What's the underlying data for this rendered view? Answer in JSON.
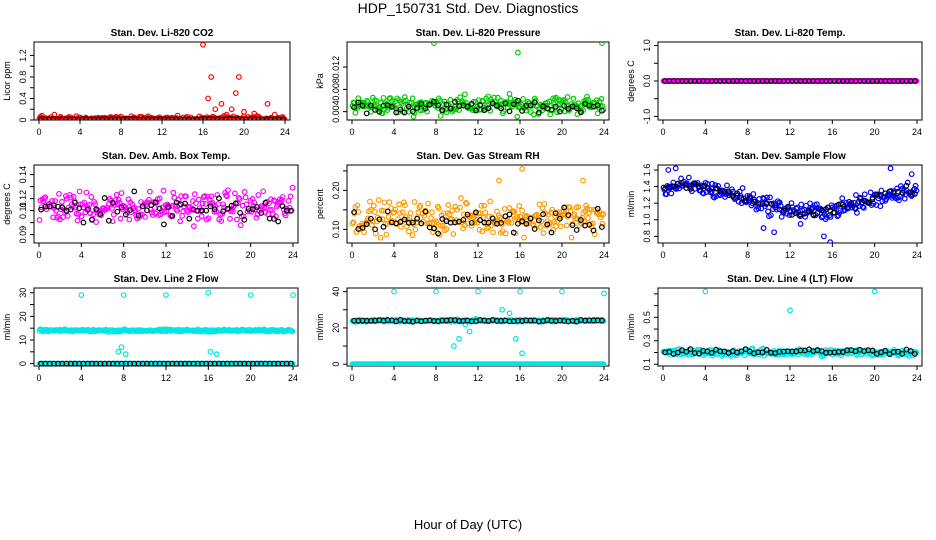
{
  "page": {
    "title": "HDP_150731  Std. Dev. Diagnostics",
    "xlabel": "Hour of Day (UTC)"
  },
  "chart_data": [
    {
      "type": "scatter",
      "title": "Stan. Dev. Li-820 CO2",
      "ylabel": "Licor ppm",
      "xlim": [
        0,
        24
      ],
      "ylim": [
        0,
        1.45
      ],
      "xticks": [
        "0",
        "4",
        "8",
        "12",
        "16",
        "20",
        "24"
      ],
      "yticks": [
        0,
        0.2,
        0.4,
        0.6,
        0.8,
        1.0,
        1.2
      ],
      "ytick_labels": [
        "0",
        "",
        "0.4",
        "",
        "0.8",
        "",
        "1.2"
      ],
      "grid": false,
      "series": [
        {
          "color": "#ff0000",
          "base": 0.02,
          "spread": 0.04,
          "outliers": [
            [
              0.3,
              0.08
            ],
            [
              1.5,
              0.1
            ],
            [
              2.1,
              0.06
            ],
            [
              16.0,
              1.4
            ],
            [
              16.5,
              0.4
            ],
            [
              16.8,
              0.8
            ],
            [
              17.2,
              0.2
            ],
            [
              17.8,
              0.3
            ],
            [
              18.3,
              0.1
            ],
            [
              18.8,
              0.2
            ],
            [
              19.2,
              0.5
            ],
            [
              19.5,
              0.8
            ],
            [
              20.0,
              0.15
            ],
            [
              21.0,
              0.12
            ],
            [
              22.3,
              0.3
            ],
            [
              23.0,
              0.1
            ]
          ]
        },
        {
          "color": "#000000",
          "base": 0.01,
          "spread": 0.01,
          "outliers": []
        }
      ]
    },
    {
      "type": "scatter",
      "title": "Stan. Dev. Li-820 Pressure",
      "ylabel": "kPa",
      "xlim": [
        0,
        24
      ],
      "ylim": [
        0.0025,
        0.0165
      ],
      "xticks": [
        "0",
        "4",
        "8",
        "12",
        "16",
        "20",
        "24"
      ],
      "yticks": [
        0.004,
        0.008,
        0.012
      ],
      "ytick_labels": [
        "0.004",
        "0.008",
        "0.012"
      ],
      "grid": false,
      "series": [
        {
          "color": "#00cc00",
          "base": 0.0052,
          "spread": 0.0014,
          "outliers": [
            [
              7.8,
              0.0163
            ],
            [
              15.8,
              0.0146
            ],
            [
              23.8,
              0.0163
            ]
          ]
        },
        {
          "color": "#000000",
          "base": 0.0048,
          "spread": 0.0009,
          "outliers": []
        }
      ]
    },
    {
      "type": "scatter",
      "title": "Stan. Dev. Li-820 Temp.",
      "ylabel": "degrees C",
      "xlim": [
        0,
        24
      ],
      "ylim": [
        -1.1,
        1.1
      ],
      "xticks": [
        "0",
        "4",
        "8",
        "12",
        "16",
        "20",
        "24"
      ],
      "yticks": [
        -1.0,
        -0.5,
        0.0,
        0.5,
        1.0
      ],
      "ytick_labels": [
        "-1.0",
        "",
        "0.0",
        "",
        "1.0"
      ],
      "grid": false,
      "series": [
        {
          "color": "#ff00ff",
          "base": 0.0,
          "spread": 0.0,
          "outliers": []
        },
        {
          "color": "#000000",
          "base": 0.0,
          "spread": 0.0,
          "outliers": []
        }
      ]
    },
    {
      "type": "scatter",
      "title": "Stan. Dev. Amb. Box Temp.",
      "ylabel": "degrees C",
      "xlim": [
        0,
        24
      ],
      "ylim": [
        0.083,
        0.148
      ],
      "xticks": [
        "0",
        "4",
        "8",
        "12",
        "16",
        "20",
        "24"
      ],
      "yticks": [
        0.09,
        0.1,
        0.11,
        0.12,
        0.13,
        0.14
      ],
      "ytick_labels": [
        "0.09",
        "",
        "0.11",
        "0.12",
        "",
        "0.14"
      ],
      "grid": false,
      "series": [
        {
          "color": "#ff00ff",
          "base": 0.113,
          "spread": 0.011,
          "outliers": []
        },
        {
          "color": "#000000",
          "base": 0.112,
          "spread": 0.01,
          "outliers": []
        }
      ]
    },
    {
      "type": "scatter",
      "title": "Stan. Dev. Gas Stream RH",
      "ylabel": "percent",
      "xlim": [
        0,
        24
      ],
      "ylim": [
        0.065,
        0.265
      ],
      "xticks": [
        "0",
        "4",
        "8",
        "12",
        "16",
        "20",
        "24"
      ],
      "yticks": [
        0.1,
        0.15,
        0.2,
        0.25
      ],
      "ytick_labels": [
        "0.10",
        "",
        "0.20",
        ""
      ],
      "grid": false,
      "series": [
        {
          "color": "#ff9900",
          "base": 0.13,
          "spread": 0.035,
          "outliers": [
            [
              16.2,
              0.255
            ],
            [
              14.0,
              0.225
            ],
            [
              22.0,
              0.225
            ]
          ]
        },
        {
          "color": "#000000",
          "base": 0.12,
          "spread": 0.025,
          "outliers": []
        }
      ]
    },
    {
      "type": "scatter",
      "title": "Stan. Dev. Sample Flow",
      "ylabel": "ml/min",
      "xlim": [
        0,
        24
      ],
      "ylim": [
        0.72,
        1.66
      ],
      "xticks": [
        "0",
        "4",
        "8",
        "12",
        "16",
        "20",
        "24"
      ],
      "yticks": [
        0.8,
        1.0,
        1.2,
        1.4,
        1.6
      ],
      "ytick_labels": [
        "0.8",
        "1.0",
        "1.2",
        "1.4",
        "1.6"
      ],
      "grid": false,
      "series": [
        {
          "color": "#0000ff",
          "base": 1.2,
          "spread": 0.09,
          "outliers": [
            [
              0.5,
              1.6
            ],
            [
              1.2,
              1.62
            ],
            [
              9.5,
              0.9
            ],
            [
              10.5,
              0.85
            ],
            [
              13.0,
              0.95
            ],
            [
              15.2,
              0.8
            ],
            [
              15.8,
              0.73
            ],
            [
              21.5,
              1.62
            ],
            [
              23.5,
              1.55
            ]
          ]
        },
        {
          "color": "#000000",
          "base": 1.2,
          "spread": 0.05,
          "outliers": []
        }
      ]
    },
    {
      "type": "scatter",
      "title": "Stan. Dev. Line 2 Flow",
      "ylabel": "ml/min",
      "xlim": [
        0,
        24
      ],
      "ylim": [
        -1,
        32
      ],
      "xticks": [
        "0",
        "4",
        "8",
        "12",
        "16",
        "20",
        "24"
      ],
      "yticks": [
        0,
        5,
        10,
        15,
        20,
        25,
        30
      ],
      "ytick_labels": [
        "0",
        "",
        "10",
        "",
        "20",
        "",
        "30"
      ],
      "grid": false,
      "series": [
        {
          "color": "#00e5e5",
          "base": 14.0,
          "spread": 0.4,
          "outliers": [
            [
              4.0,
              29
            ],
            [
              8.0,
              29
            ],
            [
              12.0,
              29
            ],
            [
              16.0,
              30
            ],
            [
              20.0,
              29
            ],
            [
              24.0,
              29
            ],
            [
              7.5,
              5
            ],
            [
              7.8,
              7
            ],
            [
              8.2,
              4
            ],
            [
              16.2,
              5
            ],
            [
              16.8,
              4
            ]
          ]
        },
        {
          "color": "#00e5e5",
          "base": 0.0,
          "spread": 0.0,
          "outliers": []
        },
        {
          "color": "#000000",
          "base": 0.0,
          "spread": 0.0,
          "outliers": []
        }
      ]
    },
    {
      "type": "scatter",
      "title": "Stan. Dev. Line 3 Flow",
      "ylabel": "ml/min",
      "xlim": [
        0,
        24
      ],
      "ylim": [
        -1,
        42
      ],
      "xticks": [
        "0",
        "4",
        "8",
        "12",
        "16",
        "20",
        "24"
      ],
      "yticks": [
        0,
        10,
        20,
        30,
        40
      ],
      "ytick_labels": [
        "0",
        "",
        "20",
        "",
        "40"
      ],
      "grid": false,
      "series": [
        {
          "color": "#00e5e5",
          "base": 0.0,
          "spread": 0.0,
          "outliers": [
            [
              4.0,
              40
            ],
            [
              8.0,
              40
            ],
            [
              12.0,
              40
            ],
            [
              16.0,
              40
            ],
            [
              20.0,
              40
            ],
            [
              24.0,
              39
            ],
            [
              9.7,
              10
            ],
            [
              10.2,
              14
            ],
            [
              10.8,
              22
            ],
            [
              11.2,
              18
            ],
            [
              11.8,
              25
            ],
            [
              14.3,
              30
            ],
            [
              15.0,
              28
            ],
            [
              15.6,
              14
            ],
            [
              16.2,
              6
            ]
          ]
        },
        {
          "color": "#00e5e5",
          "base": 24.0,
          "spread": 0.5,
          "outliers": []
        },
        {
          "color": "#000000",
          "base": 24.0,
          "spread": 0.4,
          "outliers": []
        }
      ]
    },
    {
      "type": "scatter",
      "title": "Stan. Dev. Line 4 (LT) Flow",
      "ylabel": "ml/min",
      "xlim": [
        0,
        24
      ],
      "ylim": [
        0.085,
        0.75
      ],
      "xticks": [
        "0",
        "4",
        "8",
        "12",
        "16",
        "20",
        "24"
      ],
      "yticks": [
        0.1,
        0.2,
        0.3,
        0.4,
        0.5,
        0.6,
        0.7
      ],
      "ytick_labels": [
        "0.1",
        "",
        "0.3",
        "",
        "0.5",
        "",
        ""
      ],
      "grid": false,
      "series": [
        {
          "color": "#00e5e5",
          "base": 0.2,
          "spread": 0.025,
          "outliers": [
            [
              4.0,
              0.72
            ],
            [
              12.0,
              0.56
            ],
            [
              20.0,
              0.72
            ]
          ]
        },
        {
          "color": "#000000",
          "base": 0.21,
          "spread": 0.02,
          "outliers": []
        }
      ]
    }
  ]
}
